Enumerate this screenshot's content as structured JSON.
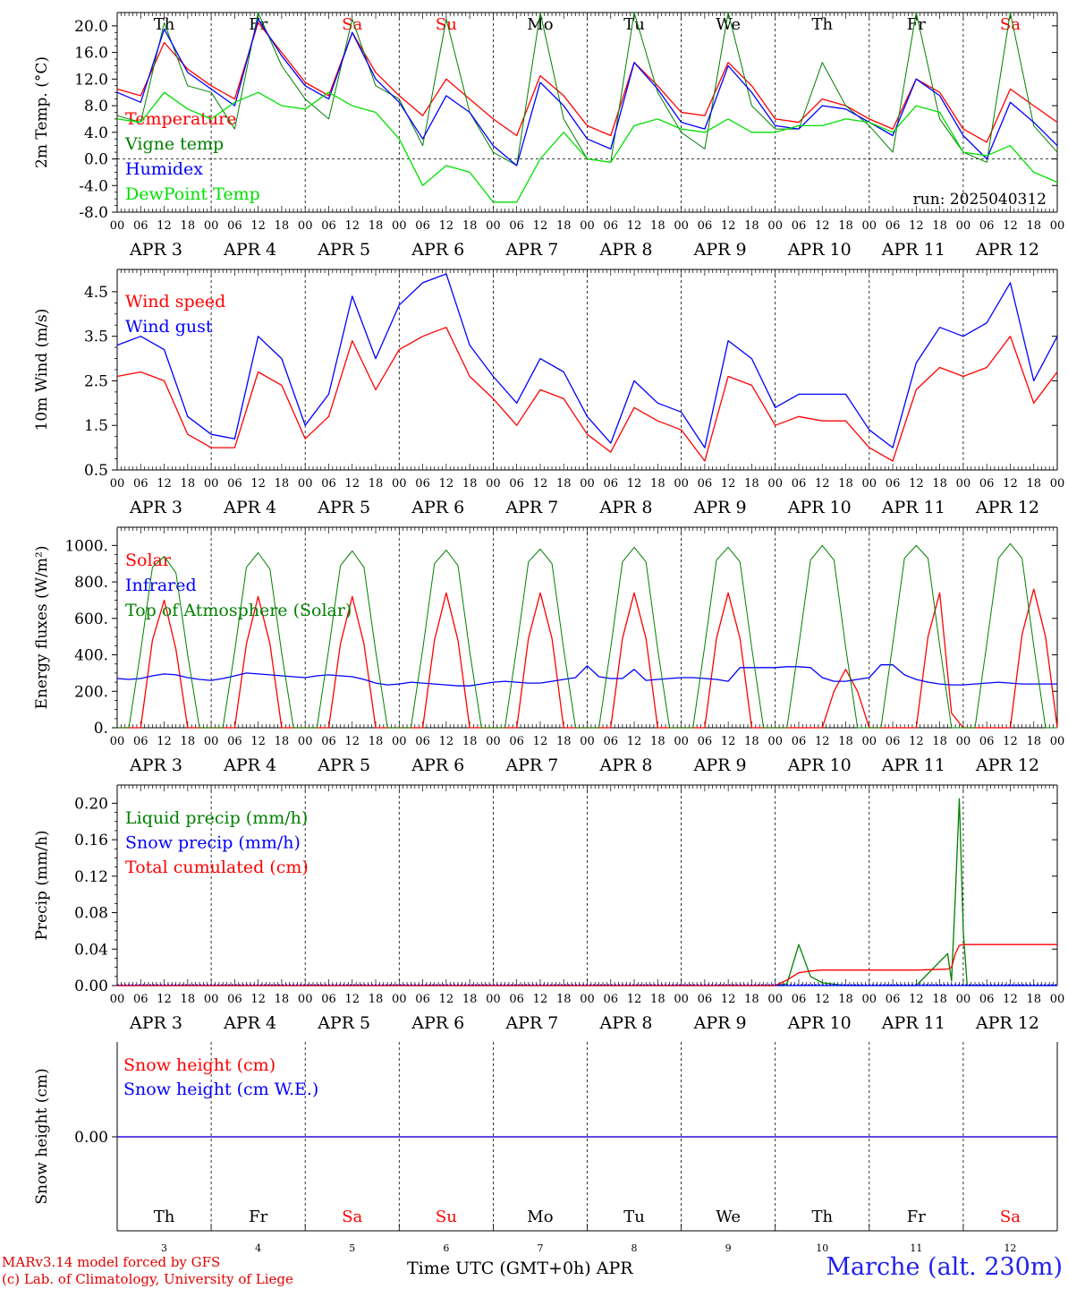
{
  "run_label": "run: 2025040312",
  "days": [
    {
      "abbr": "Th",
      "num": "3",
      "weekend": false
    },
    {
      "abbr": "Fr",
      "num": "4",
      "weekend": false
    },
    {
      "abbr": "Sa",
      "num": "5",
      "weekend": true
    },
    {
      "abbr": "Su",
      "num": "6",
      "weekend": true
    },
    {
      "abbr": "Mo",
      "num": "7",
      "weekend": false
    },
    {
      "abbr": "Tu",
      "num": "8",
      "weekend": false
    },
    {
      "abbr": "We",
      "num": "9",
      "weekend": false
    },
    {
      "abbr": "Th",
      "num": "10",
      "weekend": false
    },
    {
      "abbr": "Fr",
      "num": "11",
      "weekend": false
    },
    {
      "abbr": "Sa",
      "num": "12",
      "weekend": true
    }
  ],
  "date_labels": [
    "APR  3",
    "APR  4",
    "APR  5",
    "APR  6",
    "APR  7",
    "APR  8",
    "APR  9",
    "APR 10",
    "APR 11",
    "APR 12"
  ],
  "hour_labels": [
    "00",
    "06",
    "12",
    "18"
  ],
  "footer": {
    "credit_line1": "MARv3.14 model forced by GFS",
    "credit_line2": "(c) Lab. of Climatology, University of Liege",
    "x_title": "Time UTC (GMT+0h)",
    "month": "APR",
    "station": "Marche (alt. 230m)"
  },
  "colors": {
    "red": "#ff0000",
    "green": "#008000",
    "blue": "#0000ff",
    "lightgreen": "#00e000",
    "weekend": "#ff0000"
  },
  "chart_data": [
    {
      "type": "line",
      "ylabel": "2m Temp. (°C)",
      "ylim": [
        -8,
        22
      ],
      "yticks": [
        "-8.0",
        "-4.0",
        "0.0",
        "4.0",
        "8.0",
        "12.0",
        "16.0",
        "20.0"
      ],
      "x_hours": [
        0,
        6,
        12,
        18,
        24,
        30,
        36,
        42,
        48,
        54,
        60,
        66,
        72,
        78,
        84,
        90,
        96,
        102,
        108,
        114,
        120,
        126,
        132,
        138,
        144,
        150,
        156,
        162,
        168,
        174,
        180,
        186,
        192,
        198,
        204,
        210,
        216,
        222,
        228,
        234,
        240
      ],
      "zero_line": true,
      "series": [
        {
          "name": "Temperature",
          "color": "red",
          "values": [
            10.5,
            9.5,
            17.5,
            13.5,
            11.0,
            9.0,
            20.5,
            16.0,
            11.5,
            9.5,
            19.0,
            13.0,
            9.5,
            6.5,
            12.0,
            9.0,
            6.0,
            3.5,
            12.5,
            9.5,
            5.0,
            3.5,
            14.5,
            11.0,
            7.0,
            6.5,
            14.5,
            11.0,
            6.0,
            5.5,
            9.0,
            8.0,
            6.0,
            4.5,
            12.0,
            10.0,
            4.5,
            2.5,
            10.5,
            8.0,
            5.5
          ]
        },
        {
          "name": "Vigne temp",
          "color": "green",
          "values": [
            6.5,
            5.5,
            20.5,
            11.0,
            10.0,
            4.5,
            22.0,
            14.0,
            9.0,
            6.0,
            21.0,
            11.0,
            9.0,
            2.0,
            21.0,
            7.0,
            1.0,
            -1.0,
            22.0,
            6.0,
            0.0,
            -0.5,
            22.0,
            10.0,
            4.0,
            1.5,
            22.0,
            8.0,
            4.5,
            4.5,
            14.5,
            8.0,
            5.0,
            1.0,
            22.0,
            6.0,
            1.0,
            -0.5,
            22.0,
            5.0,
            1.0
          ]
        },
        {
          "name": "Humidex",
          "color": "blue",
          "values": [
            10.0,
            8.5,
            19.5,
            13.0,
            10.5,
            8.0,
            21.0,
            15.5,
            11.0,
            9.0,
            19.0,
            12.0,
            8.5,
            3.0,
            9.5,
            7.0,
            2.0,
            -1.0,
            11.5,
            8.0,
            3.0,
            1.5,
            14.5,
            10.5,
            5.5,
            4.5,
            14.0,
            10.0,
            5.0,
            4.5,
            8.0,
            7.5,
            5.5,
            3.5,
            12.0,
            9.5,
            3.5,
            0.0,
            8.5,
            5.5,
            2.0
          ]
        },
        {
          "name": "DewPoint Temp",
          "color": "lightgreen",
          "values": [
            6.0,
            5.5,
            10.0,
            7.5,
            6.0,
            8.5,
            10.0,
            8.0,
            7.5,
            10.0,
            8.0,
            7.0,
            3.0,
            -4.0,
            -1.0,
            -2.0,
            -6.5,
            -6.5,
            0.0,
            4.0,
            0.0,
            -0.5,
            5.0,
            6.0,
            4.5,
            4.0,
            6.0,
            4.0,
            4.0,
            5.0,
            5.0,
            6.0,
            5.5,
            4.0,
            8.0,
            7.0,
            1.0,
            0.5,
            2.0,
            -2.0,
            -3.5
          ]
        }
      ]
    },
    {
      "type": "line",
      "ylabel": "10m Wind (m/s)",
      "ylim": [
        0.5,
        5.0
      ],
      "yticks": [
        "0.5",
        "1.5",
        "2.5",
        "3.5",
        "4.5"
      ],
      "x_hours": [
        0,
        6,
        12,
        18,
        24,
        30,
        36,
        42,
        48,
        54,
        60,
        66,
        72,
        78,
        84,
        90,
        96,
        102,
        108,
        114,
        120,
        126,
        132,
        138,
        144,
        150,
        156,
        162,
        168,
        174,
        180,
        186,
        192,
        198,
        204,
        210,
        216,
        222,
        228,
        234,
        240
      ],
      "series": [
        {
          "name": "Wind speed",
          "color": "red",
          "values": [
            2.6,
            2.7,
            2.5,
            1.3,
            1.0,
            1.0,
            2.7,
            2.4,
            1.2,
            1.7,
            3.4,
            2.3,
            3.2,
            3.5,
            3.7,
            2.6,
            2.1,
            1.5,
            2.3,
            2.1,
            1.3,
            0.9,
            1.9,
            1.6,
            1.4,
            0.7,
            2.6,
            2.4,
            1.5,
            1.7,
            1.6,
            1.6,
            1.0,
            0.7,
            2.3,
            2.8,
            2.6,
            2.8,
            3.5,
            2.0,
            2.7
          ]
        },
        {
          "name": "Wind gust",
          "color": "blue",
          "values": [
            3.3,
            3.5,
            3.2,
            1.7,
            1.3,
            1.2,
            3.5,
            3.0,
            1.5,
            2.2,
            4.4,
            3.0,
            4.2,
            4.7,
            4.9,
            3.3,
            2.6,
            2.0,
            3.0,
            2.7,
            1.7,
            1.1,
            2.5,
            2.0,
            1.8,
            1.0,
            3.4,
            3.0,
            1.9,
            2.2,
            2.2,
            2.2,
            1.4,
            1.0,
            2.9,
            3.7,
            3.5,
            3.8,
            4.7,
            2.5,
            3.5
          ]
        }
      ]
    },
    {
      "type": "line",
      "ylabel": "Energy fluxes (W/m²)",
      "ylim": [
        0,
        1100
      ],
      "yticks": [
        "0.",
        "200.",
        "400.",
        "600.",
        "800.",
        "1000."
      ],
      "x_hours": [
        0,
        3,
        6,
        9,
        12,
        15,
        18,
        21,
        24,
        27,
        30,
        33,
        36,
        39,
        42,
        45,
        48,
        51,
        54,
        57,
        60,
        63,
        66,
        69,
        72,
        75,
        78,
        81,
        84,
        87,
        90,
        93,
        96,
        99,
        102,
        105,
        108,
        111,
        114,
        117,
        120,
        123,
        126,
        129,
        132,
        135,
        138,
        141,
        144,
        147,
        150,
        153,
        156,
        159,
        162,
        165,
        168,
        171,
        174,
        177,
        180,
        183,
        186,
        189,
        192,
        195,
        198,
        201,
        204,
        207,
        210,
        213,
        216,
        219,
        222,
        225,
        228,
        231,
        234,
        237,
        240
      ],
      "series": [
        {
          "name": "Solar",
          "color": "red",
          "values": [
            0,
            0,
            0,
            480,
            700,
            430,
            0,
            0,
            0,
            0,
            0,
            460,
            720,
            460,
            0,
            0,
            0,
            0,
            0,
            460,
            720,
            460,
            0,
            0,
            0,
            0,
            0,
            480,
            740,
            480,
            0,
            0,
            0,
            0,
            0,
            490,
            740,
            490,
            0,
            0,
            0,
            0,
            0,
            490,
            740,
            490,
            0,
            0,
            0,
            0,
            0,
            490,
            740,
            490,
            0,
            0,
            0,
            0,
            0,
            0,
            0,
            200,
            320,
            200,
            0,
            0,
            0,
            0,
            0,
            500,
            740,
            80,
            0,
            0,
            0,
            0,
            0,
            510,
            760,
            500,
            0
          ]
        },
        {
          "name": "Infrared",
          "color": "blue",
          "values": [
            270,
            265,
            270,
            285,
            295,
            290,
            275,
            265,
            260,
            270,
            285,
            300,
            295,
            290,
            285,
            280,
            275,
            285,
            290,
            285,
            280,
            265,
            245,
            235,
            240,
            250,
            245,
            240,
            235,
            230,
            230,
            240,
            250,
            255,
            250,
            245,
            245,
            255,
            265,
            275,
            340,
            280,
            270,
            270,
            320,
            260,
            265,
            270,
            275,
            275,
            270,
            265,
            255,
            330,
            330,
            330,
            330,
            335,
            335,
            330,
            275,
            255,
            255,
            265,
            275,
            345,
            345,
            290,
            265,
            250,
            240,
            235,
            235,
            240,
            245,
            250,
            245,
            240,
            240,
            240,
            240
          ]
        },
        {
          "name": "Top of Atmosphere (Solar)",
          "color": "green",
          "values": [
            0,
            0,
            420,
            880,
            940,
            850,
            400,
            0,
            0,
            0,
            420,
            880,
            960,
            870,
            410,
            0,
            0,
            0,
            430,
            890,
            970,
            880,
            420,
            0,
            0,
            0,
            430,
            900,
            975,
            890,
            420,
            0,
            0,
            0,
            440,
            910,
            980,
            900,
            430,
            0,
            0,
            0,
            440,
            910,
            990,
            910,
            430,
            0,
            0,
            0,
            450,
            920,
            990,
            910,
            440,
            0,
            0,
            0,
            450,
            920,
            1000,
            920,
            440,
            0,
            0,
            0,
            460,
            930,
            1000,
            930,
            450,
            0,
            0,
            0,
            460,
            930,
            1010,
            930,
            450,
            0,
            0
          ]
        }
      ]
    },
    {
      "type": "line",
      "ylabel": "Precip (mm/h)",
      "ylim": [
        0,
        0.22
      ],
      "yticks": [
        "0.00",
        "0.04",
        "0.08",
        "0.12",
        "0.16",
        "0.20"
      ],
      "x_hours": [
        0,
        168,
        171,
        174,
        177,
        180,
        186,
        192,
        204,
        212,
        213,
        214,
        215,
        216,
        217,
        218,
        219,
        240
      ],
      "series": [
        {
          "name": "Liquid precip (mm/h)",
          "color": "green",
          "values": [
            0,
            0,
            0.002,
            0.045,
            0.01,
            0.003,
            0,
            0,
            0,
            0.035,
            0.005,
            0.1,
            0.205,
            0.06,
            0.0,
            0,
            0,
            0
          ]
        },
        {
          "name": "Snow precip (mm/h)",
          "color": "blue",
          "values": [
            0,
            0,
            0,
            0,
            0,
            0,
            0,
            0,
            0,
            0,
            0,
            0,
            0,
            0,
            0,
            0,
            0,
            0
          ]
        },
        {
          "name": "Total cumulated (cm)",
          "color": "red",
          "values": [
            0,
            0,
            0.006,
            0.014,
            0.016,
            0.017,
            0.017,
            0.017,
            0.017,
            0.018,
            0.02,
            0.035,
            0.044,
            0.045,
            0.045,
            0.045,
            0.045,
            0.045
          ]
        }
      ]
    },
    {
      "type": "line",
      "ylabel": "Snow height (cm)",
      "ylim": [
        -1,
        1
      ],
      "yticks": [
        "0.00"
      ],
      "x_hours": [
        0,
        240
      ],
      "series": [
        {
          "name": "Snow height (cm)",
          "color": "red",
          "values": [
            0,
            0
          ]
        },
        {
          "name": "Snow height (cm W.E.)",
          "color": "blue",
          "values": [
            0,
            0
          ]
        }
      ]
    }
  ]
}
